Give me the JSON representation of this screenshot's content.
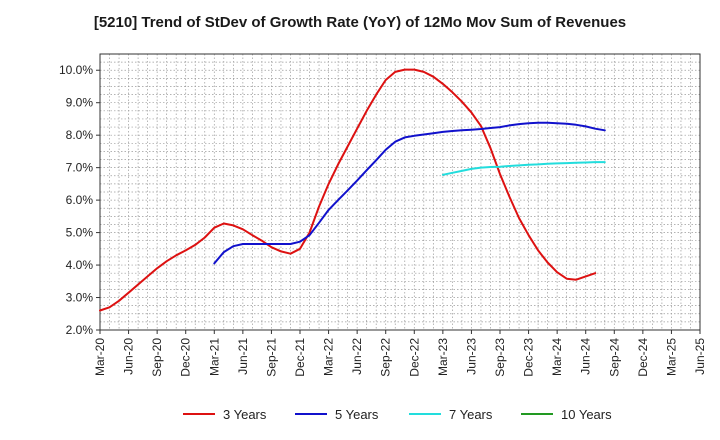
{
  "chart_data": {
    "type": "line",
    "title": "[5210]  Trend of StDev of Growth Rate (YoY) of 12Mo Mov Sum of Revenues",
    "xlabel": "",
    "ylabel": "",
    "ylim": [
      2.0,
      10.5
    ],
    "y_ticks": [
      2.0,
      3.0,
      4.0,
      5.0,
      6.0,
      7.0,
      8.0,
      9.0,
      10.0
    ],
    "y_tick_labels": [
      "2.0%",
      "3.0%",
      "4.0%",
      "5.0%",
      "6.0%",
      "7.0%",
      "8.0%",
      "9.0%",
      "10.0%"
    ],
    "x_tick_labels": [
      "Mar-20",
      "Jun-20",
      "Sep-20",
      "Dec-20",
      "Mar-21",
      "Jun-21",
      "Sep-21",
      "Dec-21",
      "Mar-22",
      "Jun-22",
      "Sep-22",
      "Dec-22",
      "Mar-23",
      "Jun-23",
      "Sep-23",
      "Dec-23",
      "Mar-24",
      "Jun-24",
      "Sep-24",
      "Dec-24",
      "Mar-25",
      "Jun-25"
    ],
    "x_start": "Mar-20",
    "grid": true,
    "legend_position": "bottom",
    "series": [
      {
        "name": "3 Years",
        "color": "#dd1111",
        "start_index": 0,
        "values": [
          2.6,
          2.7,
          2.9,
          3.15,
          3.4,
          3.65,
          3.9,
          4.12,
          4.3,
          4.45,
          4.62,
          4.85,
          5.15,
          5.28,
          5.22,
          5.1,
          4.92,
          4.75,
          4.55,
          4.42,
          4.35,
          4.5,
          5.0,
          5.8,
          6.5,
          7.1,
          7.65,
          8.2,
          8.75,
          9.25,
          9.7,
          9.95,
          10.02,
          10.02,
          9.95,
          9.8,
          9.58,
          9.32,
          9.03,
          8.7,
          8.28,
          7.6,
          6.8,
          6.1,
          5.45,
          4.92,
          4.45,
          4.08,
          3.78,
          3.58,
          3.55,
          3.65,
          3.75
        ]
      },
      {
        "name": "5 Years",
        "color": "#1111cc",
        "start_index": 12,
        "values": [
          4.05,
          4.4,
          4.58,
          4.65,
          4.65,
          4.65,
          4.65,
          4.65,
          4.65,
          4.72,
          4.92,
          5.3,
          5.7,
          6.0,
          6.3,
          6.6,
          6.92,
          7.23,
          7.55,
          7.8,
          7.93,
          7.98,
          8.02,
          8.06,
          8.1,
          8.13,
          8.15,
          8.17,
          8.19,
          8.22,
          8.25,
          8.3,
          8.34,
          8.37,
          8.38,
          8.38,
          8.37,
          8.35,
          8.32,
          8.27,
          8.2,
          8.15
        ]
      },
      {
        "name": "7 Years",
        "color": "#22dddd",
        "start_index": 36,
        "values": [
          6.78,
          6.84,
          6.9,
          6.96,
          7.0,
          7.02,
          7.03,
          7.05,
          7.07,
          7.09,
          7.1,
          7.12,
          7.13,
          7.14,
          7.15,
          7.16,
          7.17,
          7.17
        ]
      },
      {
        "name": "10 Years",
        "color": "#229922",
        "start_index": 0,
        "values": []
      }
    ]
  }
}
